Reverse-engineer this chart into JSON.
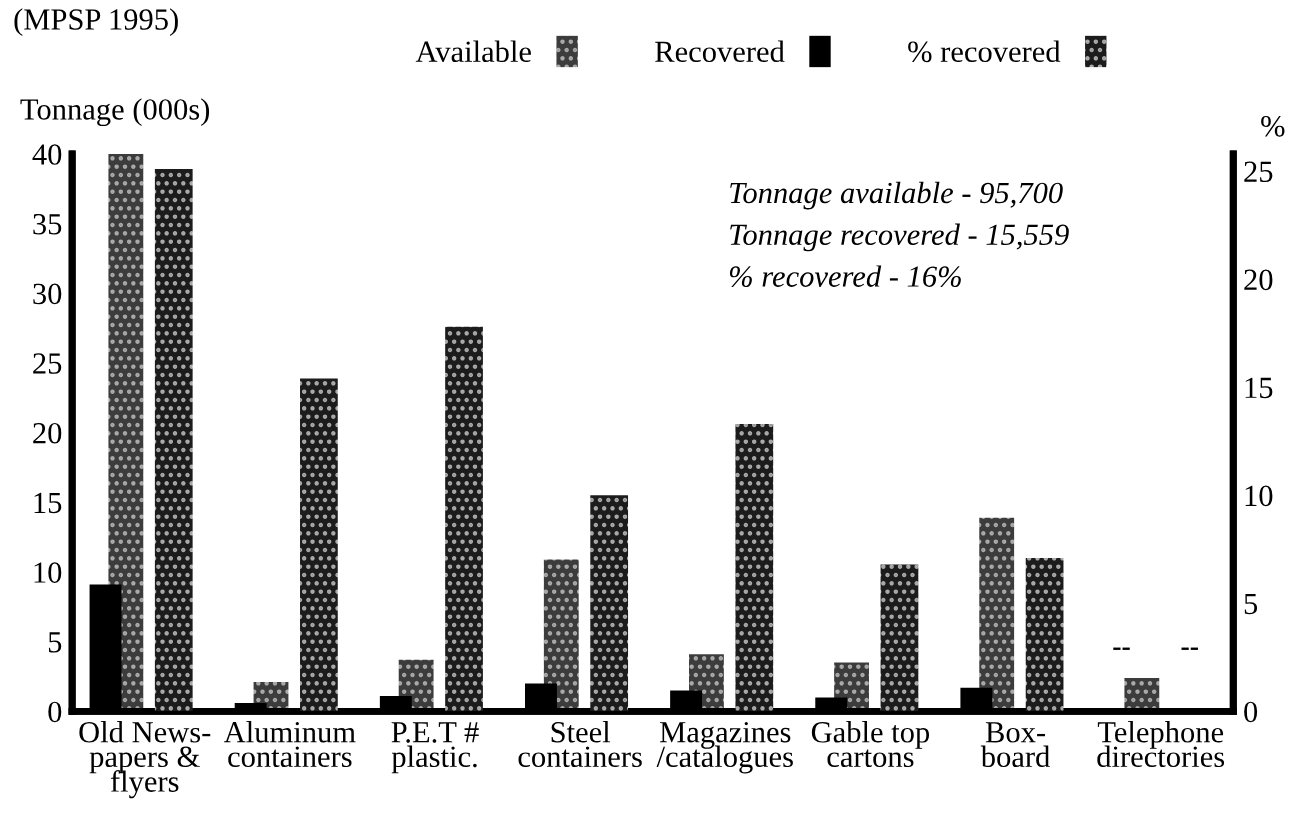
{
  "chart_data": {
    "type": "bar",
    "categories": [
      "Old News-\npapers &\nflyers",
      "Aluminum\ncontainers",
      "P.E.T #\nplastic.",
      "Steel\ncontainers",
      "Magazines\n/catalogues",
      "Gable top\ncartons",
      "Box-\nboard",
      "Telephone\ndirectories"
    ],
    "series": [
      {
        "name": "Available",
        "color": "#3c3c3c",
        "values": [
          40,
          2.1,
          3.7,
          10.9,
          4.1,
          3.5,
          13.9,
          2.4
        ]
      },
      {
        "name": "Recovered",
        "color": "#000000",
        "values": [
          9.1,
          0.6,
          1.1,
          2.0,
          1.5,
          1.0,
          1.7,
          null
        ]
      },
      {
        "name": "% recovered",
        "color": "#1c1c1c",
        "axis": "y2",
        "values": [
          25.1,
          15.4,
          17.8,
          10.0,
          13.3,
          6.8,
          7.1,
          null
        ]
      }
    ],
    "ylabel": "Tonnage (000s)",
    "y2label": "%",
    "ylim": [
      0,
      40
    ],
    "yticks": [
      0,
      5,
      10,
      15,
      20,
      25,
      30,
      35,
      40
    ],
    "y2lim": [
      0,
      25.8
    ],
    "y2ticks": [
      0,
      5,
      10,
      15,
      20,
      25
    ],
    "annotations": [
      "(MPSP 1995)",
      "Tonnage available - 95,700",
      "Tonnage recovered - 15,559",
      "% recovered - 16%",
      "--",
      "--"
    ],
    "legend": "top",
    "grid": false
  }
}
